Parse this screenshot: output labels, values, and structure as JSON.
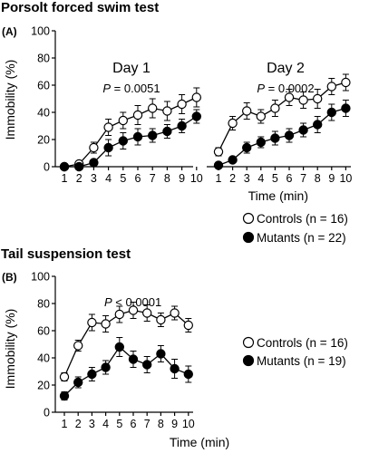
{
  "sections": [
    {
      "title": "Porsolt forced swim test",
      "panel": "(A)"
    },
    {
      "title": "Tail suspension test",
      "panel": "(B)"
    }
  ],
  "chart_data": [
    {
      "type": "line",
      "title": "Porsolt forced swim test",
      "panel_label": "(A)",
      "xlabel": "Time (min)",
      "ylabel": "Immobility (%)",
      "ylim": [
        0,
        100
      ],
      "yticks": [
        0,
        20,
        40,
        60,
        80,
        100
      ],
      "subpanels": [
        {
          "title": "Day 1",
          "p_prefix": "P",
          "p_rest": " = 0.0051",
          "x": [
            1,
            2,
            3,
            4,
            5,
            6,
            7,
            8,
            9,
            10
          ],
          "series": [
            {
              "name": "Controls (n = 16)",
              "marker": "open",
              "values": [
                0,
                2,
                14,
                29,
                34,
                38,
                43,
                41,
                46,
                51
              ],
              "errors": [
                0,
                1,
                4,
                6,
                6,
                7,
                7,
                7,
                7,
                7
              ]
            },
            {
              "name": "Mutants (n = 22)",
              "marker": "filled",
              "values": [
                0,
                0,
                3,
                14,
                19,
                22,
                23,
                26,
                30,
                37
              ],
              "errors": [
                0,
                0,
                1,
                6,
                6,
                6,
                5,
                5,
                5,
                5
              ]
            }
          ]
        },
        {
          "title": "Day 2",
          "p_prefix": "P",
          "p_rest": " = 0.0002",
          "x": [
            1,
            2,
            3,
            4,
            5,
            6,
            7,
            8,
            9,
            10
          ],
          "series": [
            {
              "name": "Controls (n = 16)",
              "marker": "open",
              "values": [
                11,
                32,
                41,
                37,
                43,
                51,
                49,
                50,
                59,
                62
              ],
              "errors": [
                3,
                5,
                6,
                5,
                6,
                6,
                6,
                7,
                6,
                6
              ]
            },
            {
              "name": "Mutants (n = 22)",
              "marker": "filled",
              "values": [
                1,
                5,
                14,
                18,
                21,
                23,
                27,
                31,
                40,
                43
              ],
              "errors": [
                0,
                2,
                4,
                4,
                5,
                5,
                5,
                6,
                6,
                6
              ]
            }
          ]
        }
      ],
      "x_ticks": [
        "1",
        "2",
        "3",
        "4",
        "5",
        "6",
        "7",
        "8",
        "9",
        "10"
      ],
      "legend": [
        "Controls (n = 16)",
        "Mutants (n = 22)"
      ]
    },
    {
      "type": "line",
      "title": "Tail suspension test",
      "panel_label": "(B)",
      "xlabel": "Time (min)",
      "ylabel": "Immobility (%)",
      "ylim": [
        0,
        100
      ],
      "yticks": [
        0,
        20,
        40,
        60,
        80,
        100
      ],
      "p_prefix": "P",
      "p_rest": " < 0.0001",
      "x": [
        1,
        2,
        3,
        4,
        5,
        6,
        7,
        8,
        9,
        10
      ],
      "series": [
        {
          "name": "Controls (n = 16)",
          "marker": "open",
          "values": [
            26,
            49,
            66,
            65,
            72,
            75,
            73,
            68,
            73,
            64
          ],
          "errors": [
            3,
            4,
            6,
            6,
            6,
            6,
            6,
            5,
            5,
            5
          ]
        },
        {
          "name": "Mutants (n = 19)",
          "marker": "filled",
          "values": [
            12,
            22,
            28,
            33,
            48,
            39,
            35,
            43,
            32,
            28
          ],
          "errors": [
            3,
            4,
            5,
            5,
            7,
            6,
            6,
            6,
            7,
            6
          ]
        }
      ],
      "x_ticks": [
        "1",
        "2",
        "3",
        "4",
        "5",
        "6",
        "7",
        "8",
        "9",
        "10"
      ],
      "legend": [
        "Controls (n = 16)",
        "Mutants (n = 19)"
      ]
    }
  ]
}
